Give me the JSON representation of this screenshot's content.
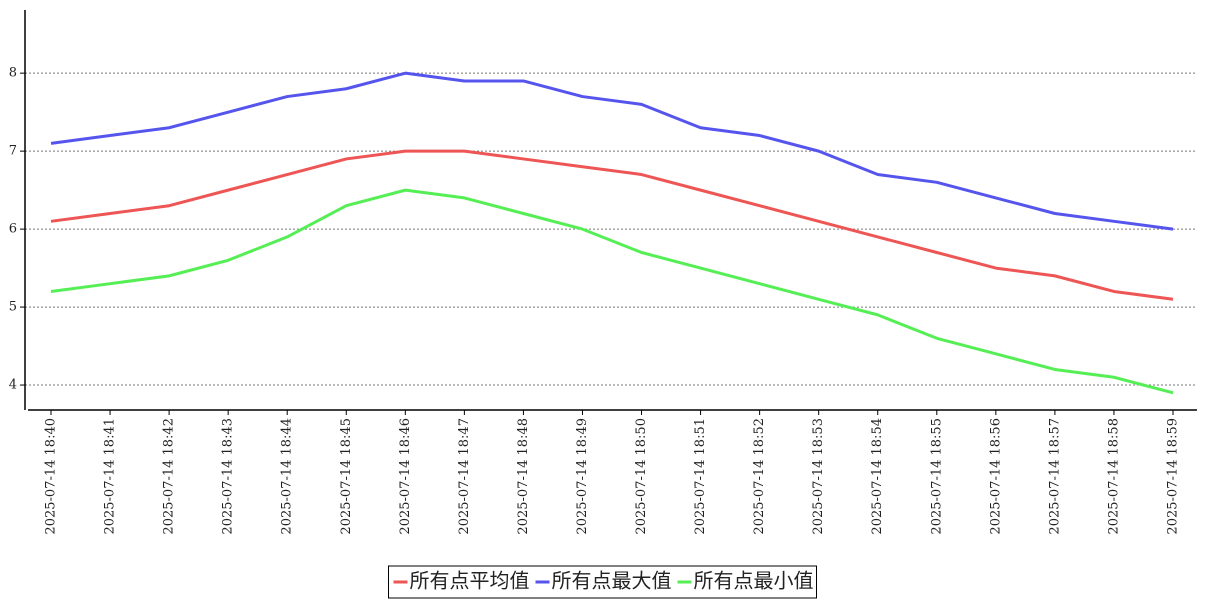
{
  "chart_data": {
    "type": "line",
    "categories": [
      "2025-07-14 18:40",
      "2025-07-14 18:41",
      "2025-07-14 18:42",
      "2025-07-14 18:43",
      "2025-07-14 18:44",
      "2025-07-14 18:45",
      "2025-07-14 18:46",
      "2025-07-14 18:47",
      "2025-07-14 18:48",
      "2025-07-14 18:49",
      "2025-07-14 18:50",
      "2025-07-14 18:51",
      "2025-07-14 18:52",
      "2025-07-14 18:53",
      "2025-07-14 18:54",
      "2025-07-14 18:55",
      "2025-07-14 18:56",
      "2025-07-14 18:57",
      "2025-07-14 18:58",
      "2025-07-14 18:59"
    ],
    "series": [
      {
        "name": "所有点平均值",
        "color": "#ee5555",
        "values": [
          6.1,
          6.2,
          6.3,
          6.5,
          6.7,
          6.9,
          7.0,
          7.0,
          6.9,
          6.8,
          6.7,
          6.5,
          6.3,
          6.1,
          5.9,
          5.7,
          5.5,
          5.4,
          5.2,
          5.1
        ]
      },
      {
        "name": "所有点最大值",
        "color": "#5555ee",
        "values": [
          7.1,
          7.2,
          7.3,
          7.5,
          7.7,
          7.8,
          8.0,
          7.9,
          7.9,
          7.7,
          7.6,
          7.3,
          7.2,
          7.0,
          6.7,
          6.6,
          6.4,
          6.2,
          6.1,
          6.0
        ]
      },
      {
        "name": "所有点最小值",
        "color": "#55ee55",
        "values": [
          5.2,
          5.3,
          5.4,
          5.6,
          5.9,
          6.3,
          6.5,
          6.4,
          6.2,
          6.0,
          5.7,
          5.5,
          5.3,
          5.1,
          4.9,
          4.6,
          4.4,
          4.2,
          4.1,
          3.9
        ]
      }
    ],
    "ylim": [
      3.68,
      8.81
    ],
    "yticks": [
      4,
      5,
      6,
      7,
      8
    ],
    "grid": true,
    "legend": "bottom"
  }
}
